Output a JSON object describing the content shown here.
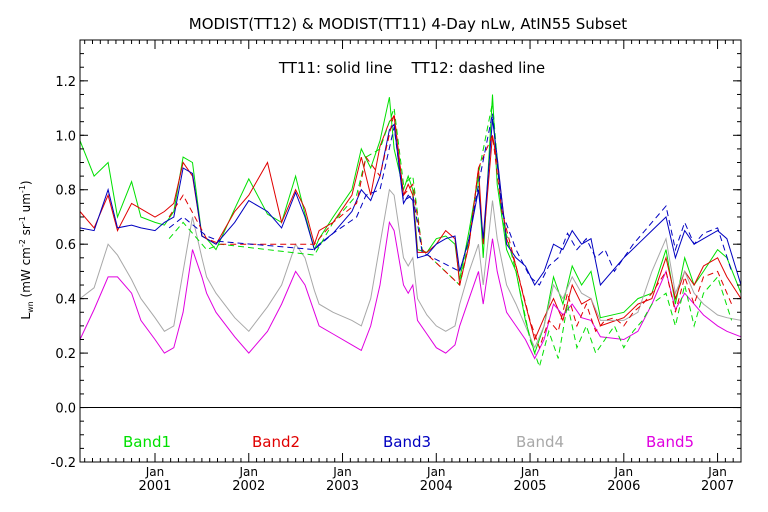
{
  "chart_data": {
    "type": "line",
    "title": "MODIST(TT12) & MODIST(TT11) 4-Day nLw, AtIN55 Subset",
    "annotation": "TT11: solid line    TT12: dashed line",
    "ylabel": "L_wn (mW cm^-2 sr^-1 um^-1)",
    "ylabel_parts": {
      "main": "L",
      "sub": "wn",
      "units": "(mW cm",
      "e1": "-2",
      "sr": " sr",
      "e2": "-1",
      "um": " um",
      "e3": "-1",
      "close": ")"
    },
    "ylim": [
      -0.2,
      1.35
    ],
    "xlim": [
      2000.2,
      2007.25
    ],
    "yticks": [
      -0.2,
      0.0,
      0.2,
      0.4,
      0.6,
      0.8,
      1.0,
      1.2
    ],
    "ytick_labels": [
      "-0.2",
      "0.0",
      "0.2",
      "0.4",
      "0.6",
      "0.8",
      "1.0",
      "1.2"
    ],
    "xticks": [
      {
        "x": 2001.0,
        "month": "Jan",
        "year": "2001"
      },
      {
        "x": 2002.0,
        "month": "Jan",
        "year": "2002"
      },
      {
        "x": 2003.0,
        "month": "Jan",
        "year": "2003"
      },
      {
        "x": 2004.0,
        "month": "Jan",
        "year": "2004"
      },
      {
        "x": 2005.0,
        "month": "Jan",
        "year": "2005"
      },
      {
        "x": 2006.0,
        "month": "Jan",
        "year": "2006"
      },
      {
        "x": 2007.0,
        "month": "Jan",
        "year": "2007"
      }
    ],
    "zero_line": 0.0,
    "grid": false,
    "legend_position": "bottom",
    "series": [
      {
        "name": "Band1",
        "color": "#00e000",
        "x": [
          2000.2,
          2000.35,
          2000.5,
          2000.6,
          2000.75,
          2000.85,
          2001.0,
          2001.1,
          2001.2,
          2001.3,
          2001.4,
          2001.5,
          2001.55,
          2001.65,
          2001.85,
          2002.0,
          2002.2,
          2002.35,
          2002.5,
          2002.6,
          2002.7,
          2002.75,
          2002.9,
          2003.1,
          2003.2,
          2003.3,
          2003.4,
          2003.5,
          2003.55,
          2003.65,
          2003.7,
          2003.75,
          2003.8,
          2003.9,
          2004.0,
          2004.1,
          2004.2,
          2004.25,
          2004.35,
          2004.45,
          2004.5,
          2004.6,
          2004.65,
          2004.75,
          2004.85,
          2004.95,
          2005.05,
          2005.15,
          2005.25,
          2005.35,
          2005.45,
          2005.55,
          2005.65,
          2005.75,
          2006.0,
          2006.15,
          2006.3,
          2006.45,
          2006.55,
          2006.65,
          2006.75,
          2006.85,
          2007.0,
          2007.1,
          2007.25
        ],
        "values": [
          0.98,
          0.85,
          0.9,
          0.7,
          0.83,
          0.7,
          0.68,
          0.67,
          0.72,
          0.92,
          0.9,
          0.63,
          0.62,
          0.58,
          0.73,
          0.84,
          0.71,
          0.68,
          0.85,
          0.71,
          0.58,
          0.62,
          0.7,
          0.8,
          0.95,
          0.88,
          0.98,
          1.14,
          0.95,
          0.8,
          0.85,
          0.8,
          0.58,
          0.57,
          0.62,
          0.63,
          0.6,
          0.47,
          0.65,
          0.85,
          0.55,
          1.15,
          0.82,
          0.58,
          0.5,
          0.32,
          0.2,
          0.3,
          0.48,
          0.38,
          0.52,
          0.45,
          0.5,
          0.33,
          0.35,
          0.4,
          0.42,
          0.58,
          0.38,
          0.55,
          0.45,
          0.5,
          0.58,
          0.55,
          0.42
        ]
      },
      {
        "name": "Band2",
        "color": "#e00000",
        "x": [
          2000.2,
          2000.35,
          2000.5,
          2000.6,
          2000.75,
          2000.85,
          2001.0,
          2001.1,
          2001.2,
          2001.3,
          2001.4,
          2001.5,
          2001.55,
          2001.65,
          2001.85,
          2002.0,
          2002.2,
          2002.35,
          2002.5,
          2002.6,
          2002.7,
          2002.75,
          2002.9,
          2003.1,
          2003.2,
          2003.3,
          2003.4,
          2003.5,
          2003.55,
          2003.65,
          2003.7,
          2003.75,
          2003.8,
          2003.9,
          2004.0,
          2004.1,
          2004.2,
          2004.25,
          2004.35,
          2004.45,
          2004.5,
          2004.6,
          2004.65,
          2004.75,
          2004.85,
          2004.95,
          2005.05,
          2005.15,
          2005.25,
          2005.35,
          2005.45,
          2005.55,
          2005.65,
          2005.75,
          2006.0,
          2006.15,
          2006.3,
          2006.45,
          2006.55,
          2006.65,
          2006.75,
          2006.85,
          2007.0,
          2007.1,
          2007.25
        ],
        "values": [
          0.72,
          0.66,
          0.78,
          0.65,
          0.75,
          0.73,
          0.7,
          0.72,
          0.75,
          0.9,
          0.85,
          0.63,
          0.62,
          0.6,
          0.72,
          0.78,
          0.9,
          0.68,
          0.8,
          0.73,
          0.6,
          0.65,
          0.68,
          0.78,
          0.92,
          0.78,
          0.96,
          1.05,
          1.07,
          0.78,
          0.82,
          0.78,
          0.57,
          0.57,
          0.6,
          0.65,
          0.62,
          0.45,
          0.6,
          0.88,
          0.6,
          1.0,
          0.9,
          0.62,
          0.52,
          0.38,
          0.25,
          0.33,
          0.4,
          0.32,
          0.45,
          0.38,
          0.4,
          0.3,
          0.33,
          0.38,
          0.4,
          0.55,
          0.4,
          0.5,
          0.45,
          0.52,
          0.55,
          0.48,
          0.4
        ]
      },
      {
        "name": "Band3",
        "color": "#0000c0",
        "x": [
          2000.2,
          2000.35,
          2000.5,
          2000.6,
          2000.75,
          2000.85,
          2001.0,
          2001.1,
          2001.2,
          2001.3,
          2001.4,
          2001.5,
          2001.55,
          2001.65,
          2001.85,
          2002.0,
          2002.2,
          2002.35,
          2002.5,
          2002.6,
          2002.7,
          2002.75,
          2002.9,
          2003.1,
          2003.2,
          2003.3,
          2003.4,
          2003.5,
          2003.55,
          2003.65,
          2003.7,
          2003.75,
          2003.8,
          2003.9,
          2004.0,
          2004.1,
          2004.2,
          2004.25,
          2004.35,
          2004.45,
          2004.5,
          2004.6,
          2004.65,
          2004.75,
          2004.85,
          2004.95,
          2005.05,
          2005.15,
          2005.25,
          2005.35,
          2005.45,
          2005.55,
          2005.65,
          2005.75,
          2006.0,
          2006.15,
          2006.3,
          2006.45,
          2006.55,
          2006.65,
          2006.75,
          2006.85,
          2007.0,
          2007.1,
          2007.25
        ],
        "values": [
          0.66,
          0.65,
          0.8,
          0.66,
          0.67,
          0.66,
          0.65,
          0.68,
          0.7,
          0.88,
          0.86,
          0.63,
          0.62,
          0.6,
          0.68,
          0.76,
          0.72,
          0.66,
          0.79,
          0.7,
          0.58,
          0.6,
          0.64,
          0.72,
          0.8,
          0.76,
          0.85,
          1.02,
          1.04,
          0.75,
          0.78,
          0.76,
          0.55,
          0.56,
          0.6,
          0.62,
          0.63,
          0.5,
          0.62,
          0.8,
          0.62,
          1.06,
          0.92,
          0.6,
          0.55,
          0.52,
          0.45,
          0.5,
          0.6,
          0.58,
          0.65,
          0.6,
          0.62,
          0.45,
          0.55,
          0.6,
          0.65,
          0.7,
          0.55,
          0.65,
          0.6,
          0.62,
          0.65,
          0.62,
          0.45
        ]
      },
      {
        "name": "Band4",
        "color": "#a8a8a8",
        "x": [
          2000.2,
          2000.35,
          2000.5,
          2000.6,
          2000.75,
          2000.85,
          2001.0,
          2001.1,
          2001.2,
          2001.3,
          2001.4,
          2001.5,
          2001.55,
          2001.65,
          2001.85,
          2002.0,
          2002.2,
          2002.35,
          2002.5,
          2002.6,
          2002.7,
          2002.75,
          2002.9,
          2003.1,
          2003.2,
          2003.3,
          2003.4,
          2003.5,
          2003.55,
          2003.65,
          2003.7,
          2003.75,
          2003.8,
          2003.9,
          2004.0,
          2004.1,
          2004.2,
          2004.25,
          2004.35,
          2004.45,
          2004.5,
          2004.6,
          2004.65,
          2004.75,
          2004.85,
          2004.95,
          2005.05,
          2005.15,
          2005.25,
          2005.35,
          2005.45,
          2005.55,
          2005.65,
          2005.75,
          2006.0,
          2006.15,
          2006.3,
          2006.45,
          2006.55,
          2006.65,
          2006.75,
          2006.85,
          2007.0,
          2007.1,
          2007.25
        ],
        "values": [
          0.4,
          0.44,
          0.6,
          0.56,
          0.47,
          0.4,
          0.33,
          0.28,
          0.3,
          0.5,
          0.7,
          0.55,
          0.48,
          0.42,
          0.33,
          0.28,
          0.37,
          0.45,
          0.6,
          0.55,
          0.43,
          0.38,
          0.35,
          0.32,
          0.3,
          0.4,
          0.6,
          0.8,
          0.78,
          0.55,
          0.52,
          0.55,
          0.4,
          0.34,
          0.3,
          0.28,
          0.3,
          0.38,
          0.5,
          0.6,
          0.45,
          0.76,
          0.62,
          0.45,
          0.38,
          0.3,
          0.22,
          0.3,
          0.45,
          0.4,
          0.48,
          0.42,
          0.4,
          0.32,
          0.32,
          0.35,
          0.5,
          0.62,
          0.42,
          0.5,
          0.42,
          0.38,
          0.34,
          0.33,
          0.32
        ]
      },
      {
        "name": "Band5",
        "color": "#e000e0",
        "x": [
          2000.2,
          2000.35,
          2000.5,
          2000.6,
          2000.75,
          2000.85,
          2001.0,
          2001.1,
          2001.2,
          2001.3,
          2001.4,
          2001.5,
          2001.55,
          2001.65,
          2001.85,
          2002.0,
          2002.2,
          2002.35,
          2002.5,
          2002.6,
          2002.7,
          2002.75,
          2002.9,
          2003.1,
          2003.2,
          2003.3,
          2003.4,
          2003.5,
          2003.55,
          2003.65,
          2003.7,
          2003.75,
          2003.8,
          2003.9,
          2004.0,
          2004.1,
          2004.2,
          2004.25,
          2004.35,
          2004.45,
          2004.5,
          2004.6,
          2004.65,
          2004.75,
          2004.85,
          2004.95,
          2005.05,
          2005.15,
          2005.25,
          2005.35,
          2005.45,
          2005.55,
          2005.65,
          2005.75,
          2006.0,
          2006.15,
          2006.3,
          2006.45,
          2006.55,
          2006.65,
          2006.75,
          2006.85,
          2007.0,
          2007.1,
          2007.25
        ],
        "values": [
          0.25,
          0.36,
          0.48,
          0.48,
          0.42,
          0.32,
          0.25,
          0.2,
          0.22,
          0.35,
          0.58,
          0.48,
          0.42,
          0.35,
          0.26,
          0.2,
          0.28,
          0.38,
          0.5,
          0.45,
          0.35,
          0.3,
          0.27,
          0.23,
          0.21,
          0.3,
          0.45,
          0.68,
          0.65,
          0.45,
          0.42,
          0.45,
          0.32,
          0.27,
          0.22,
          0.2,
          0.23,
          0.3,
          0.4,
          0.5,
          0.38,
          0.62,
          0.5,
          0.35,
          0.3,
          0.25,
          0.18,
          0.25,
          0.38,
          0.34,
          0.38,
          0.33,
          0.32,
          0.26,
          0.25,
          0.28,
          0.38,
          0.5,
          0.36,
          0.42,
          0.38,
          0.34,
          0.3,
          0.28,
          0.26
        ]
      }
    ],
    "dashed_series": [
      {
        "name": "Band1",
        "color": "#00e000",
        "x": [
          2001.15,
          2001.3,
          2001.55,
          2001.7,
          2002.7,
          2002.9,
          2003.15,
          2003.25,
          2003.4,
          2003.55,
          2003.65,
          2003.75,
          2003.85,
          2004.25,
          2004.35,
          2004.45,
          2004.6,
          2004.7,
          2004.85,
          2005.0,
          2005.1,
          2005.2,
          2005.3,
          2005.4,
          2005.5,
          2005.6,
          2005.7,
          2005.8,
          2005.9,
          2006.0,
          2006.1,
          2006.2,
          2006.3,
          2006.45,
          2006.55,
          2006.65,
          2006.75,
          2006.85,
          2007.0,
          2007.15
        ],
        "values": [
          0.62,
          0.68,
          0.58,
          0.6,
          0.56,
          0.68,
          0.78,
          0.92,
          0.95,
          1.1,
          0.82,
          0.85,
          0.58,
          0.45,
          0.62,
          0.86,
          1.12,
          0.7,
          0.5,
          0.25,
          0.15,
          0.28,
          0.18,
          0.38,
          0.22,
          0.3,
          0.2,
          0.25,
          0.3,
          0.22,
          0.28,
          0.32,
          0.38,
          0.42,
          0.3,
          0.45,
          0.3,
          0.42,
          0.48,
          0.32
        ]
      },
      {
        "name": "Band2",
        "color": "#e00000",
        "x": [
          2001.15,
          2001.3,
          2001.55,
          2001.7,
          2002.7,
          2002.9,
          2003.15,
          2003.25,
          2003.4,
          2003.55,
          2003.65,
          2003.75,
          2003.85,
          2004.25,
          2004.35,
          2004.45,
          2004.6,
          2004.7,
          2004.85,
          2005.0,
          2005.1,
          2005.2,
          2005.3,
          2005.4,
          2005.5,
          2005.6,
          2005.7,
          2005.8,
          2005.9,
          2006.0,
          2006.1,
          2006.2,
          2006.3,
          2006.45,
          2006.55,
          2006.65,
          2006.75,
          2006.85,
          2007.0,
          2007.15
        ],
        "values": [
          0.7,
          0.78,
          0.62,
          0.6,
          0.6,
          0.68,
          0.75,
          0.92,
          0.85,
          1.08,
          0.78,
          0.82,
          0.58,
          0.45,
          0.6,
          0.88,
          1.0,
          0.72,
          0.52,
          0.32,
          0.22,
          0.32,
          0.28,
          0.42,
          0.3,
          0.38,
          0.28,
          0.32,
          0.33,
          0.3,
          0.35,
          0.38,
          0.42,
          0.5,
          0.35,
          0.48,
          0.38,
          0.48,
          0.5,
          0.38
        ]
      },
      {
        "name": "Band3",
        "color": "#0000c0",
        "x": [
          2001.15,
          2001.3,
          2001.55,
          2001.7,
          2002.7,
          2002.9,
          2003.15,
          2003.25,
          2003.4,
          2003.55,
          2003.65,
          2003.75,
          2003.85,
          2004.25,
          2004.35,
          2004.45,
          2004.6,
          2004.7,
          2004.85,
          2005.0,
          2005.1,
          2005.2,
          2005.3,
          2005.4,
          2005.5,
          2005.6,
          2005.7,
          2005.8,
          2005.9,
          2006.0,
          2006.1,
          2006.2,
          2006.3,
          2006.45,
          2006.55,
          2006.65,
          2006.75,
          2006.85,
          2007.0,
          2007.15
        ],
        "values": [
          0.66,
          0.7,
          0.63,
          0.61,
          0.58,
          0.64,
          0.7,
          0.78,
          0.8,
          1.03,
          0.76,
          0.78,
          0.57,
          0.5,
          0.62,
          0.82,
          1.08,
          0.72,
          0.58,
          0.48,
          0.45,
          0.52,
          0.55,
          0.64,
          0.58,
          0.62,
          0.55,
          0.58,
          0.5,
          0.55,
          0.6,
          0.64,
          0.68,
          0.74,
          0.58,
          0.68,
          0.6,
          0.64,
          0.66,
          0.5
        ]
      }
    ]
  }
}
